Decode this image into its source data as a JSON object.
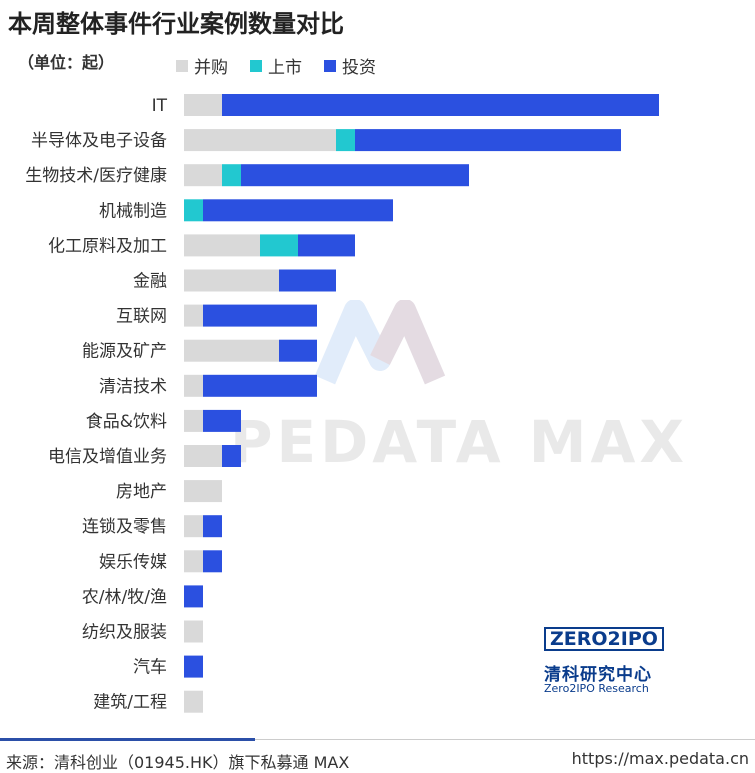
{
  "title": "本周整体事件行业案例数量对比",
  "unit": "（单位：起）",
  "legend": [
    {
      "name": "并购",
      "color": "#d9d9d9"
    },
    {
      "name": "上市",
      "color": "#22c8d0"
    },
    {
      "name": "投资",
      "color": "#2b50e0"
    }
  ],
  "watermark": "PEDATA MAX",
  "logo": {
    "brand": "ZERO2IPO",
    "cn": "清科研究中心",
    "en": "Zero2IPO Research"
  },
  "footer": {
    "source": "来源：清科创业（01945.HK）旗下私募通 MAX",
    "url": "https://max.pedata.cn"
  },
  "chart_data": {
    "type": "bar",
    "orientation": "horizontal",
    "stacked": true,
    "categories": [
      "IT",
      "半导体及电子设备",
      "生物技术/医疗健康",
      "机械制造",
      "化工原料及加工",
      "金融",
      "互联网",
      "能源及矿产",
      "清洁技术",
      "食品&饮料",
      "电信及增值业务",
      "房地产",
      "连锁及零售",
      "娱乐传媒",
      "农/林/牧/渔",
      "纺织及服装",
      "汽车",
      "建筑/工程"
    ],
    "series": [
      {
        "name": "并购",
        "color": "#d9d9d9",
        "values": [
          2,
          8,
          2,
          0,
          4,
          5,
          1,
          5,
          1,
          1,
          2,
          2,
          1,
          1,
          0,
          1,
          0,
          1
        ]
      },
      {
        "name": "上市",
        "color": "#22c8d0",
        "values": [
          0,
          1,
          1,
          1,
          2,
          0,
          0,
          0,
          0,
          0,
          0,
          0,
          0,
          0,
          0,
          0,
          0,
          0
        ]
      },
      {
        "name": "投资",
        "color": "#2b50e0",
        "values": [
          23,
          14,
          12,
          10,
          3,
          3,
          6,
          2,
          6,
          2,
          1,
          0,
          1,
          1,
          1,
          0,
          1,
          0
        ]
      }
    ],
    "xlim": [
      0,
      25
    ],
    "grid": false,
    "legend_position": "top"
  }
}
